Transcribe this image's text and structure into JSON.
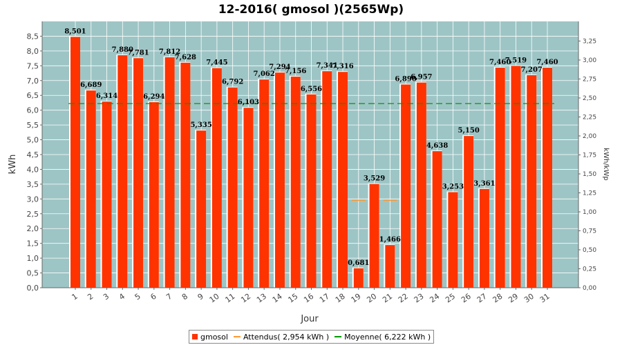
{
  "chart_data": {
    "type": "bar",
    "title": "12-2016( gmosol )(2565Wp)",
    "xlabel": "Jour",
    "ylabel": "kWh",
    "y2label": "kWh/kWp",
    "categories": [
      "1",
      "2",
      "3",
      "4",
      "5",
      "6",
      "7",
      "8",
      "9",
      "10",
      "11",
      "12",
      "13",
      "14",
      "15",
      "16",
      "17",
      "18",
      "19",
      "20",
      "21",
      "22",
      "23",
      "24",
      "25",
      "26",
      "27",
      "28",
      "29",
      "30",
      "31"
    ],
    "series": [
      {
        "name": "gmosol",
        "values": [
          8.501,
          6.689,
          6.314,
          7.88,
          7.781,
          6.294,
          7.812,
          7.628,
          5.335,
          7.445,
          6.792,
          6.103,
          7.062,
          7.294,
          7.156,
          6.556,
          7.341,
          7.316,
          0.681,
          3.529,
          1.466,
          6.89,
          6.957,
          4.638,
          3.253,
          5.15,
          3.361,
          7.46,
          7.519,
          7.207,
          7.46
        ],
        "labels": [
          "8,501",
          "6,689",
          "6,314",
          "7,880",
          "7,781",
          "6,294",
          "7,812",
          "7,628",
          "5,335",
          "7,445",
          "6,792",
          "6,103",
          "7,062",
          "7,294",
          "7,156",
          "6,556",
          "7,341",
          "7,316",
          "0,681",
          "3,529",
          "1,466",
          "6,890",
          "6,957",
          "4,638",
          "3,253",
          "5,150",
          "3,361",
          "7,460",
          "7,519",
          "7,207",
          "7,460"
        ],
        "color": "#ff3300"
      }
    ],
    "expected": {
      "name": "Attendus( 2,954 kWh )",
      "value": 2.954,
      "visible_days": [
        "19",
        "21"
      ],
      "color": "#ff9933"
    },
    "average": {
      "name": "Moyenne( 6,222 kWh )",
      "value": 6.222,
      "color": "#009900"
    },
    "ylim": [
      0,
      9.0
    ],
    "yticks": [
      "0,0",
      "0,5",
      "1,0",
      "1,5",
      "2,0",
      "2,5",
      "3,0",
      "3,5",
      "4,0",
      "4,5",
      "5,0",
      "5,5",
      "6,0",
      "6,5",
      "7,0",
      "7,5",
      "8,0",
      "8,5"
    ],
    "y2lim": [
      0,
      3.5088
    ],
    "y2ticks": [
      "0,00",
      "0,25",
      "0,50",
      "0,75",
      "1,00",
      "1,25",
      "1,50",
      "1,75",
      "2,00",
      "2,25",
      "2,50",
      "2,75",
      "3,00",
      "3,25"
    ],
    "grid": true,
    "legend_position": "bottom",
    "plot_background": "#9ec5c5"
  }
}
